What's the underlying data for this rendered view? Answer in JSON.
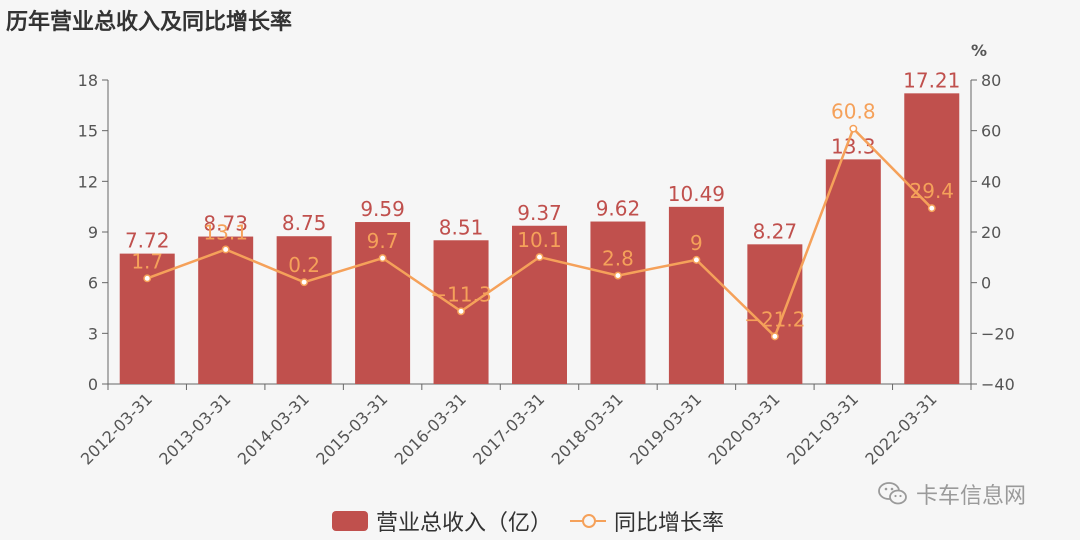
{
  "title": "历年营业总收入及同比增长率",
  "watermark": "卡车信息网",
  "legend": {
    "bar": "营业总收入（亿）",
    "line": "同比增长率"
  },
  "chart_data": {
    "type": "bar+line",
    "categories": [
      "2012-03-31",
      "2013-03-31",
      "2014-03-31",
      "2015-03-31",
      "2016-03-31",
      "2017-03-31",
      "2018-03-31",
      "2019-03-31",
      "2020-03-31",
      "2021-03-31",
      "2022-03-31"
    ],
    "series": [
      {
        "name": "营业总收入（亿）",
        "type": "bar",
        "axis": "left",
        "values": [
          7.72,
          8.73,
          8.75,
          9.59,
          8.51,
          9.37,
          9.62,
          10.49,
          8.27,
          13.3,
          17.21
        ],
        "labels": [
          "7.72",
          "8.73",
          "8.75",
          "9.59",
          "8.51",
          "9.37",
          "9.62",
          "10.49",
          "8.27",
          "13.3",
          "17.21"
        ],
        "color": "#c0504d"
      },
      {
        "name": "同比增长率",
        "type": "line",
        "axis": "right",
        "values": [
          1.7,
          13.1,
          0.2,
          9.7,
          -11.3,
          10.1,
          2.8,
          9,
          -21.2,
          60.8,
          29.4
        ],
        "labels": [
          "1.7",
          "13.1",
          "0.2",
          "9.7",
          "−11.3",
          "10.1",
          "2.8",
          "9",
          "−21.2",
          "60.8",
          "29.4"
        ],
        "color": "#f5a15a"
      }
    ],
    "left_axis": {
      "min": 0,
      "max": 18,
      "ticks": [
        "0",
        "3",
        "6",
        "9",
        "12",
        "15",
        "18"
      ]
    },
    "right_axis": {
      "min": -40,
      "max": 80,
      "ticks": [
        "−40",
        "−20",
        "0",
        "20",
        "40",
        "60",
        "80"
      ],
      "unit": "%"
    },
    "grid": false,
    "legend_position": "bottom"
  }
}
